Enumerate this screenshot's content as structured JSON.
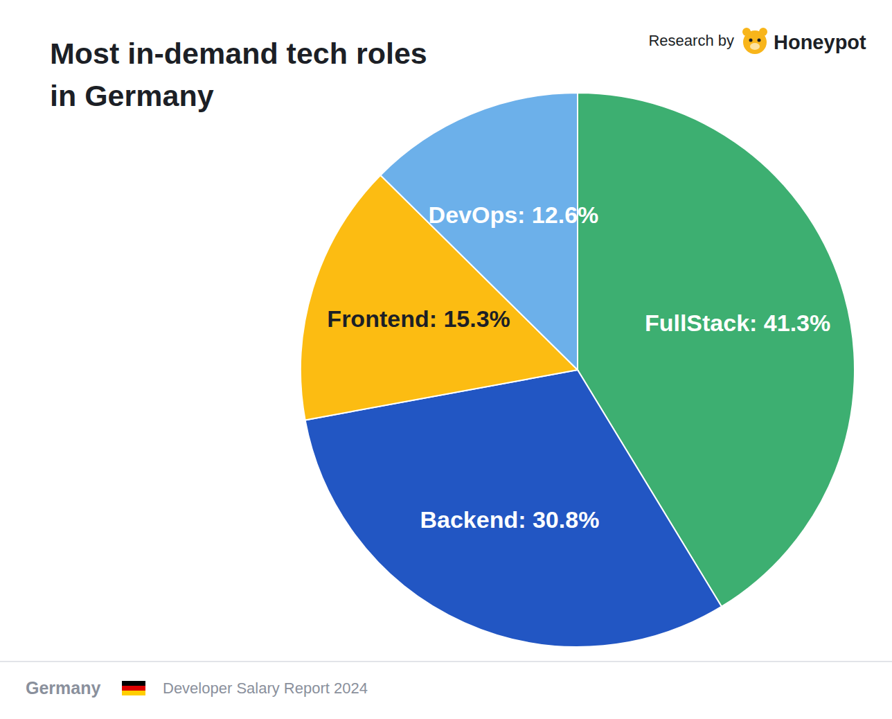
{
  "chart_data": {
    "type": "pie",
    "title": "Most in-demand tech roles in Germany",
    "categories": [
      "FullStack",
      "Backend",
      "Frontend",
      "DevOps"
    ],
    "values": [
      41.3,
      30.8,
      15.3,
      12.6
    ],
    "value_labels": [
      "FullStack: 41.3%",
      "Backend: 30.8%",
      "Frontend: 15.3%",
      "DevOps: 12.6%"
    ],
    "colors": [
      "#3daf71",
      "#2256c3",
      "#fcbc12",
      "#6cb0ea"
    ],
    "data_labels": true,
    "annotations": [
      "Research by",
      "Honeypot",
      "Germany",
      "Developer Salary Report 2024"
    ]
  }
}
